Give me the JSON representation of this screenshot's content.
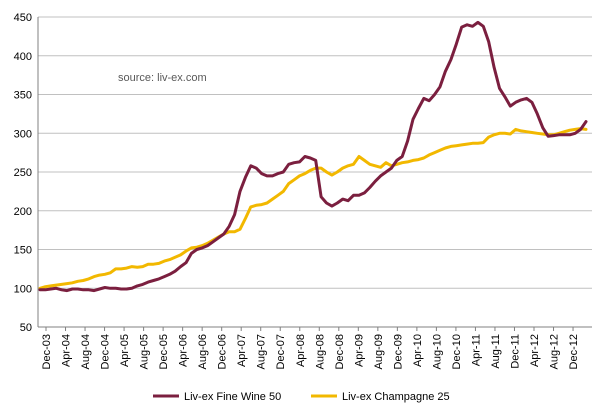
{
  "chart_data": {
    "type": "line",
    "source_note": "source: liv-ex.com",
    "ylim": [
      50,
      450
    ],
    "y_ticks": [
      50,
      100,
      150,
      200,
      250,
      300,
      350,
      400,
      450
    ],
    "x_tick_labels": [
      "Dec-03",
      "Apr-04",
      "Aug-04",
      "Dec-04",
      "Apr-05",
      "Aug-05",
      "Dec-05",
      "Apr-06",
      "Aug-06",
      "Dec-06",
      "Apr-07",
      "Aug-07",
      "Dec-07",
      "Apr-08",
      "Aug-08",
      "Dec-08",
      "Apr-09",
      "Aug-09",
      "Dec-09",
      "Apr-10",
      "Aug-10",
      "Dec-10",
      "Apr-11",
      "Aug-11",
      "Dec-11",
      "Apr-12",
      "Aug-12",
      "Dec-12"
    ],
    "grid": "horizontal",
    "legend_position": "bottom",
    "series": [
      {
        "name": "Liv-ex Fine Wine 50",
        "color": "#7b1f3f",
        "values": [
          98,
          98,
          99,
          100,
          98,
          97,
          99,
          99,
          98,
          98,
          97,
          99,
          101,
          100,
          100,
          99,
          99,
          100,
          103,
          105,
          108,
          110,
          112,
          115,
          118,
          122,
          128,
          133,
          145,
          150,
          152,
          155,
          160,
          165,
          170,
          180,
          195,
          225,
          243,
          258,
          255,
          248,
          245,
          245,
          248,
          250,
          260,
          262,
          263,
          270,
          268,
          265,
          218,
          210,
          206,
          210,
          215,
          213,
          220,
          220,
          223,
          230,
          238,
          245,
          250,
          255,
          265,
          270,
          290,
          318,
          332,
          345,
          342,
          350,
          360,
          380,
          395,
          415,
          437,
          440,
          438,
          443,
          438,
          418,
          385,
          358,
          347,
          335,
          340,
          343,
          345,
          340,
          325,
          307,
          296,
          297,
          298,
          298,
          298,
          300,
          305,
          315
        ]
      },
      {
        "name": "Liv-ex Champagne 25",
        "color": "#f2b800",
        "values": [
          100,
          102,
          103,
          104,
          105,
          106,
          107,
          109,
          110,
          112,
          115,
          117,
          118,
          120,
          125,
          125,
          126,
          128,
          127,
          128,
          131,
          131,
          132,
          135,
          137,
          140,
          143,
          148,
          152,
          153,
          155,
          158,
          162,
          166,
          170,
          173,
          173,
          176,
          190,
          205,
          207,
          208,
          210,
          215,
          220,
          225,
          235,
          240,
          245,
          248,
          252,
          255,
          255,
          250,
          246,
          250,
          255,
          258,
          260,
          270,
          265,
          260,
          258,
          256,
          262,
          258,
          260,
          262,
          263,
          265,
          266,
          268,
          272,
          275,
          278,
          281,
          283,
          284,
          285,
          286,
          287,
          287,
          288,
          295,
          298,
          300,
          300,
          299,
          305,
          303,
          302,
          301,
          300,
          299,
          298,
          298,
          300,
          302,
          304,
          305,
          306,
          305
        ]
      }
    ]
  }
}
